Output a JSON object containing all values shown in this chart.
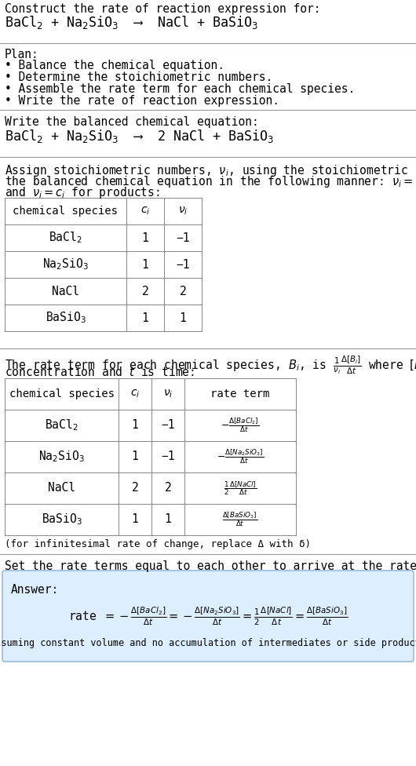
{
  "title_line1": "Construct the rate of reaction expression for:",
  "title_line2": "BaCl$_2$ + Na$_2$SiO$_3$  ⟶  NaCl + BaSiO$_3$",
  "plan_header": "Plan:",
  "plan_items": [
    "• Balance the chemical equation.",
    "• Determine the stoichiometric numbers.",
    "• Assemble the rate term for each chemical species.",
    "• Write the rate of reaction expression."
  ],
  "balanced_header": "Write the balanced chemical equation:",
  "balanced_eq": "BaCl$_2$ + Na$_2$SiO$_3$  ⟶  2 NaCl + BaSiO$_3$",
  "stoich_intro_1": "Assign stoichiometric numbers, $\\nu_i$, using the stoichiometric coefficients, $c_i$, from",
  "stoich_intro_2": "the balanced chemical equation in the following manner: $\\nu_i = -c_i$ for reactants",
  "stoich_intro_3": "and $\\nu_i = c_i$ for products:",
  "table1_headers": [
    "chemical species",
    "$c_i$",
    "$\\nu_i$"
  ],
  "table1_rows": [
    [
      "BaCl$_2$",
      "1",
      "−1"
    ],
    [
      "Na$_2$SiO$_3$",
      "1",
      "−1"
    ],
    [
      "NaCl",
      "2",
      "2"
    ],
    [
      "BaSiO$_3$",
      "1",
      "1"
    ]
  ],
  "rate_intro_1": "The rate term for each chemical species, $B_i$, is $\\frac{1}{\\nu_i}\\frac{\\Delta[B_i]}{\\Delta t}$ where $[B_i]$ is the amount",
  "rate_intro_2": "concentration and $t$ is time:",
  "table2_headers": [
    "chemical species",
    "$c_i$",
    "$\\nu_i$",
    "rate term"
  ],
  "table2_rows": [
    [
      "BaCl$_2$",
      "1",
      "−1",
      "$-\\frac{\\Delta[BaCl_2]}{\\Delta t}$"
    ],
    [
      "Na$_2$SiO$_3$",
      "1",
      "−1",
      "$-\\frac{\\Delta[Na_2SiO_3]}{\\Delta t}$"
    ],
    [
      "NaCl",
      "2",
      "2",
      "$\\frac{1}{2}\\frac{\\Delta[NaCl]}{\\Delta t}$"
    ],
    [
      "BaSiO$_3$",
      "1",
      "1",
      "$\\frac{\\Delta[BaSiO_3]}{\\Delta t}$"
    ]
  ],
  "infinitesimal_note": "(for infinitesimal rate of change, replace Δ with δ)",
  "set_equal_text": "Set the rate terms equal to each other to arrive at the rate expression:",
  "answer_label": "Answer:",
  "rate_expr_parts": [
    "rate $= -\\frac{\\Delta[BaCl_2]}{\\Delta t} = -\\frac{\\Delta[Na_2SiO_3]}{\\Delta t} = \\frac{1}{2}\\frac{\\Delta[NaCl]}{\\Delta t} = \\frac{\\Delta[BaSiO_3]}{\\Delta t}$"
  ],
  "assumption_note": "(assuming constant volume and no accumulation of intermediates or side products)",
  "bg_color": "#ffffff",
  "answer_box_color": "#ddeeff",
  "answer_box_border": "#99bbdd",
  "text_color": "#000000",
  "separator_color": "#999999",
  "table_border_color": "#888888",
  "font_family": "monospace",
  "font_size": 10.5,
  "font_size_eq": 12.0,
  "font_size_small": 9.0
}
